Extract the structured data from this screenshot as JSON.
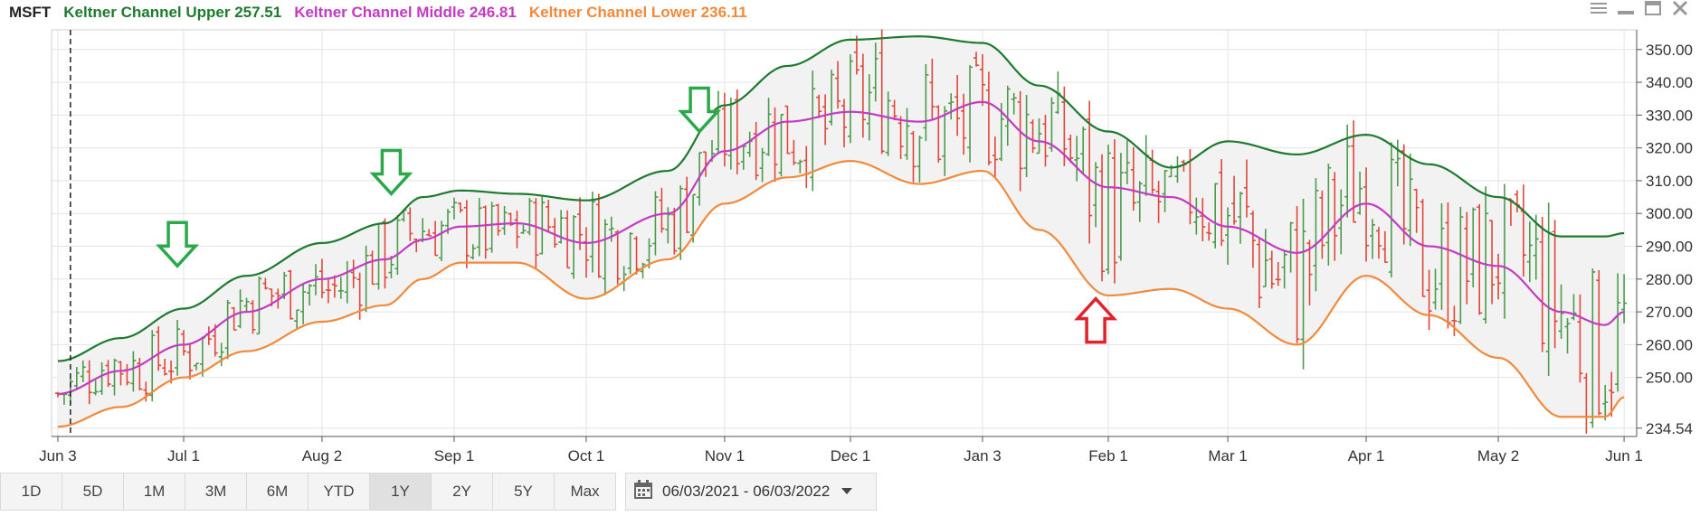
{
  "symbol": "MSFT",
  "legend": [
    {
      "label": "Keltner Channel Upper 257.51",
      "color": "#1e7a2e"
    },
    {
      "label": "Keltner Channel Middle 246.81",
      "color": "#c23bc2"
    },
    {
      "label": "Keltner Channel Lower 236.11",
      "color": "#f08a3c"
    }
  ],
  "window_icons": [
    "menu-icon",
    "minimize-icon",
    "maximize-icon",
    "close-icon"
  ],
  "ranges": [
    "1D",
    "5D",
    "1M",
    "3M",
    "6M",
    "YTD",
    "1Y",
    "2Y",
    "5Y",
    "Max"
  ],
  "active_range": "1Y",
  "date_range": "06/03/2021 - 06/03/2022",
  "colors": {
    "up": "#4c9a4c",
    "down": "#e0463a",
    "band_fill": "#f2f2f2",
    "grid": "#e3e3e3"
  },
  "chart_data": {
    "type": "line",
    "y_tick_labels": [
      "350.00",
      "340.00",
      "330.00",
      "320.00",
      "310.00",
      "300.00",
      "290.00",
      "280.00",
      "270.00",
      "260.00",
      "250.00",
      "234.54"
    ],
    "y_ticks": [
      350,
      340,
      330,
      320,
      310,
      300,
      290,
      280,
      270,
      260,
      250,
      234.54
    ],
    "ylim": [
      232,
      356
    ],
    "x_tick_labels": [
      "Jun 3",
      "Jul 1",
      "Aug 2",
      "Sep 1",
      "Oct 1",
      "Nov 1",
      "Dec 1",
      "Jan 3",
      "Feb 1",
      "Mar 1",
      "Apr 1",
      "May 2",
      "Jun 1"
    ],
    "x_ticks": [
      0,
      20,
      42,
      63,
      84,
      106,
      126,
      147,
      167,
      186,
      208,
      229,
      249
    ],
    "x_range": [
      -1,
      251
    ],
    "crosshair_x": 2,
    "series": [
      {
        "name": "Keltner Channel Upper",
        "color": "#1e7a2e",
        "x": [
          0,
          10,
          20,
          30,
          42,
          52,
          58,
          64,
          73,
          84,
          97,
          106,
          116,
          126,
          137,
          147,
          156,
          167,
          177,
          186,
          197,
          208,
          218,
          229,
          239,
          246,
          249
        ],
        "y": [
          255,
          262,
          271,
          281,
          291,
          297,
          305,
          307,
          306,
          304,
          313,
          333,
          345,
          353,
          354,
          352,
          339,
          325,
          314,
          322,
          318,
          324,
          315,
          305,
          293,
          293,
          294
        ]
      },
      {
        "name": "Keltner Channel Middle",
        "color": "#c23bc2",
        "x": [
          0,
          10,
          20,
          30,
          42,
          52,
          58,
          64,
          73,
          84,
          97,
          106,
          116,
          126,
          137,
          147,
          156,
          167,
          177,
          186,
          197,
          208,
          218,
          229,
          239,
          246,
          249
        ],
        "y": [
          245,
          252,
          260,
          270,
          280,
          286,
          292,
          296,
          297,
          291,
          300,
          319,
          328,
          331,
          328,
          334,
          322,
          308,
          305,
          296,
          288,
          303,
          290,
          284,
          270,
          266,
          270
        ]
      },
      {
        "name": "Keltner Channel Lower",
        "color": "#f08a3c",
        "x": [
          0,
          10,
          20,
          30,
          42,
          52,
          58,
          64,
          73,
          84,
          97,
          106,
          116,
          126,
          137,
          147,
          156,
          167,
          177,
          186,
          197,
          208,
          218,
          229,
          239,
          246,
          249
        ],
        "y": [
          235,
          241,
          250,
          258,
          267,
          272,
          280,
          285,
          285,
          274,
          286,
          303,
          311,
          316,
          309,
          313,
          295,
          275,
          277,
          271,
          260,
          281,
          269,
          256,
          238,
          238,
          244
        ]
      }
    ],
    "annotations": [
      {
        "type": "arrow-down",
        "color": "#2aa84a",
        "x": 19,
        "y": 284
      },
      {
        "type": "arrow-down",
        "color": "#2aa84a",
        "x": 53,
        "y": 306
      },
      {
        "type": "arrow-down",
        "color": "#2aa84a",
        "x": 102,
        "y": 325
      },
      {
        "type": "arrow-up",
        "color": "#e0232a",
        "x": 165,
        "y": 274
      }
    ],
    "ohlc_bars": "approximate daily OHLC bars following the middle band with channel-width noise"
  }
}
